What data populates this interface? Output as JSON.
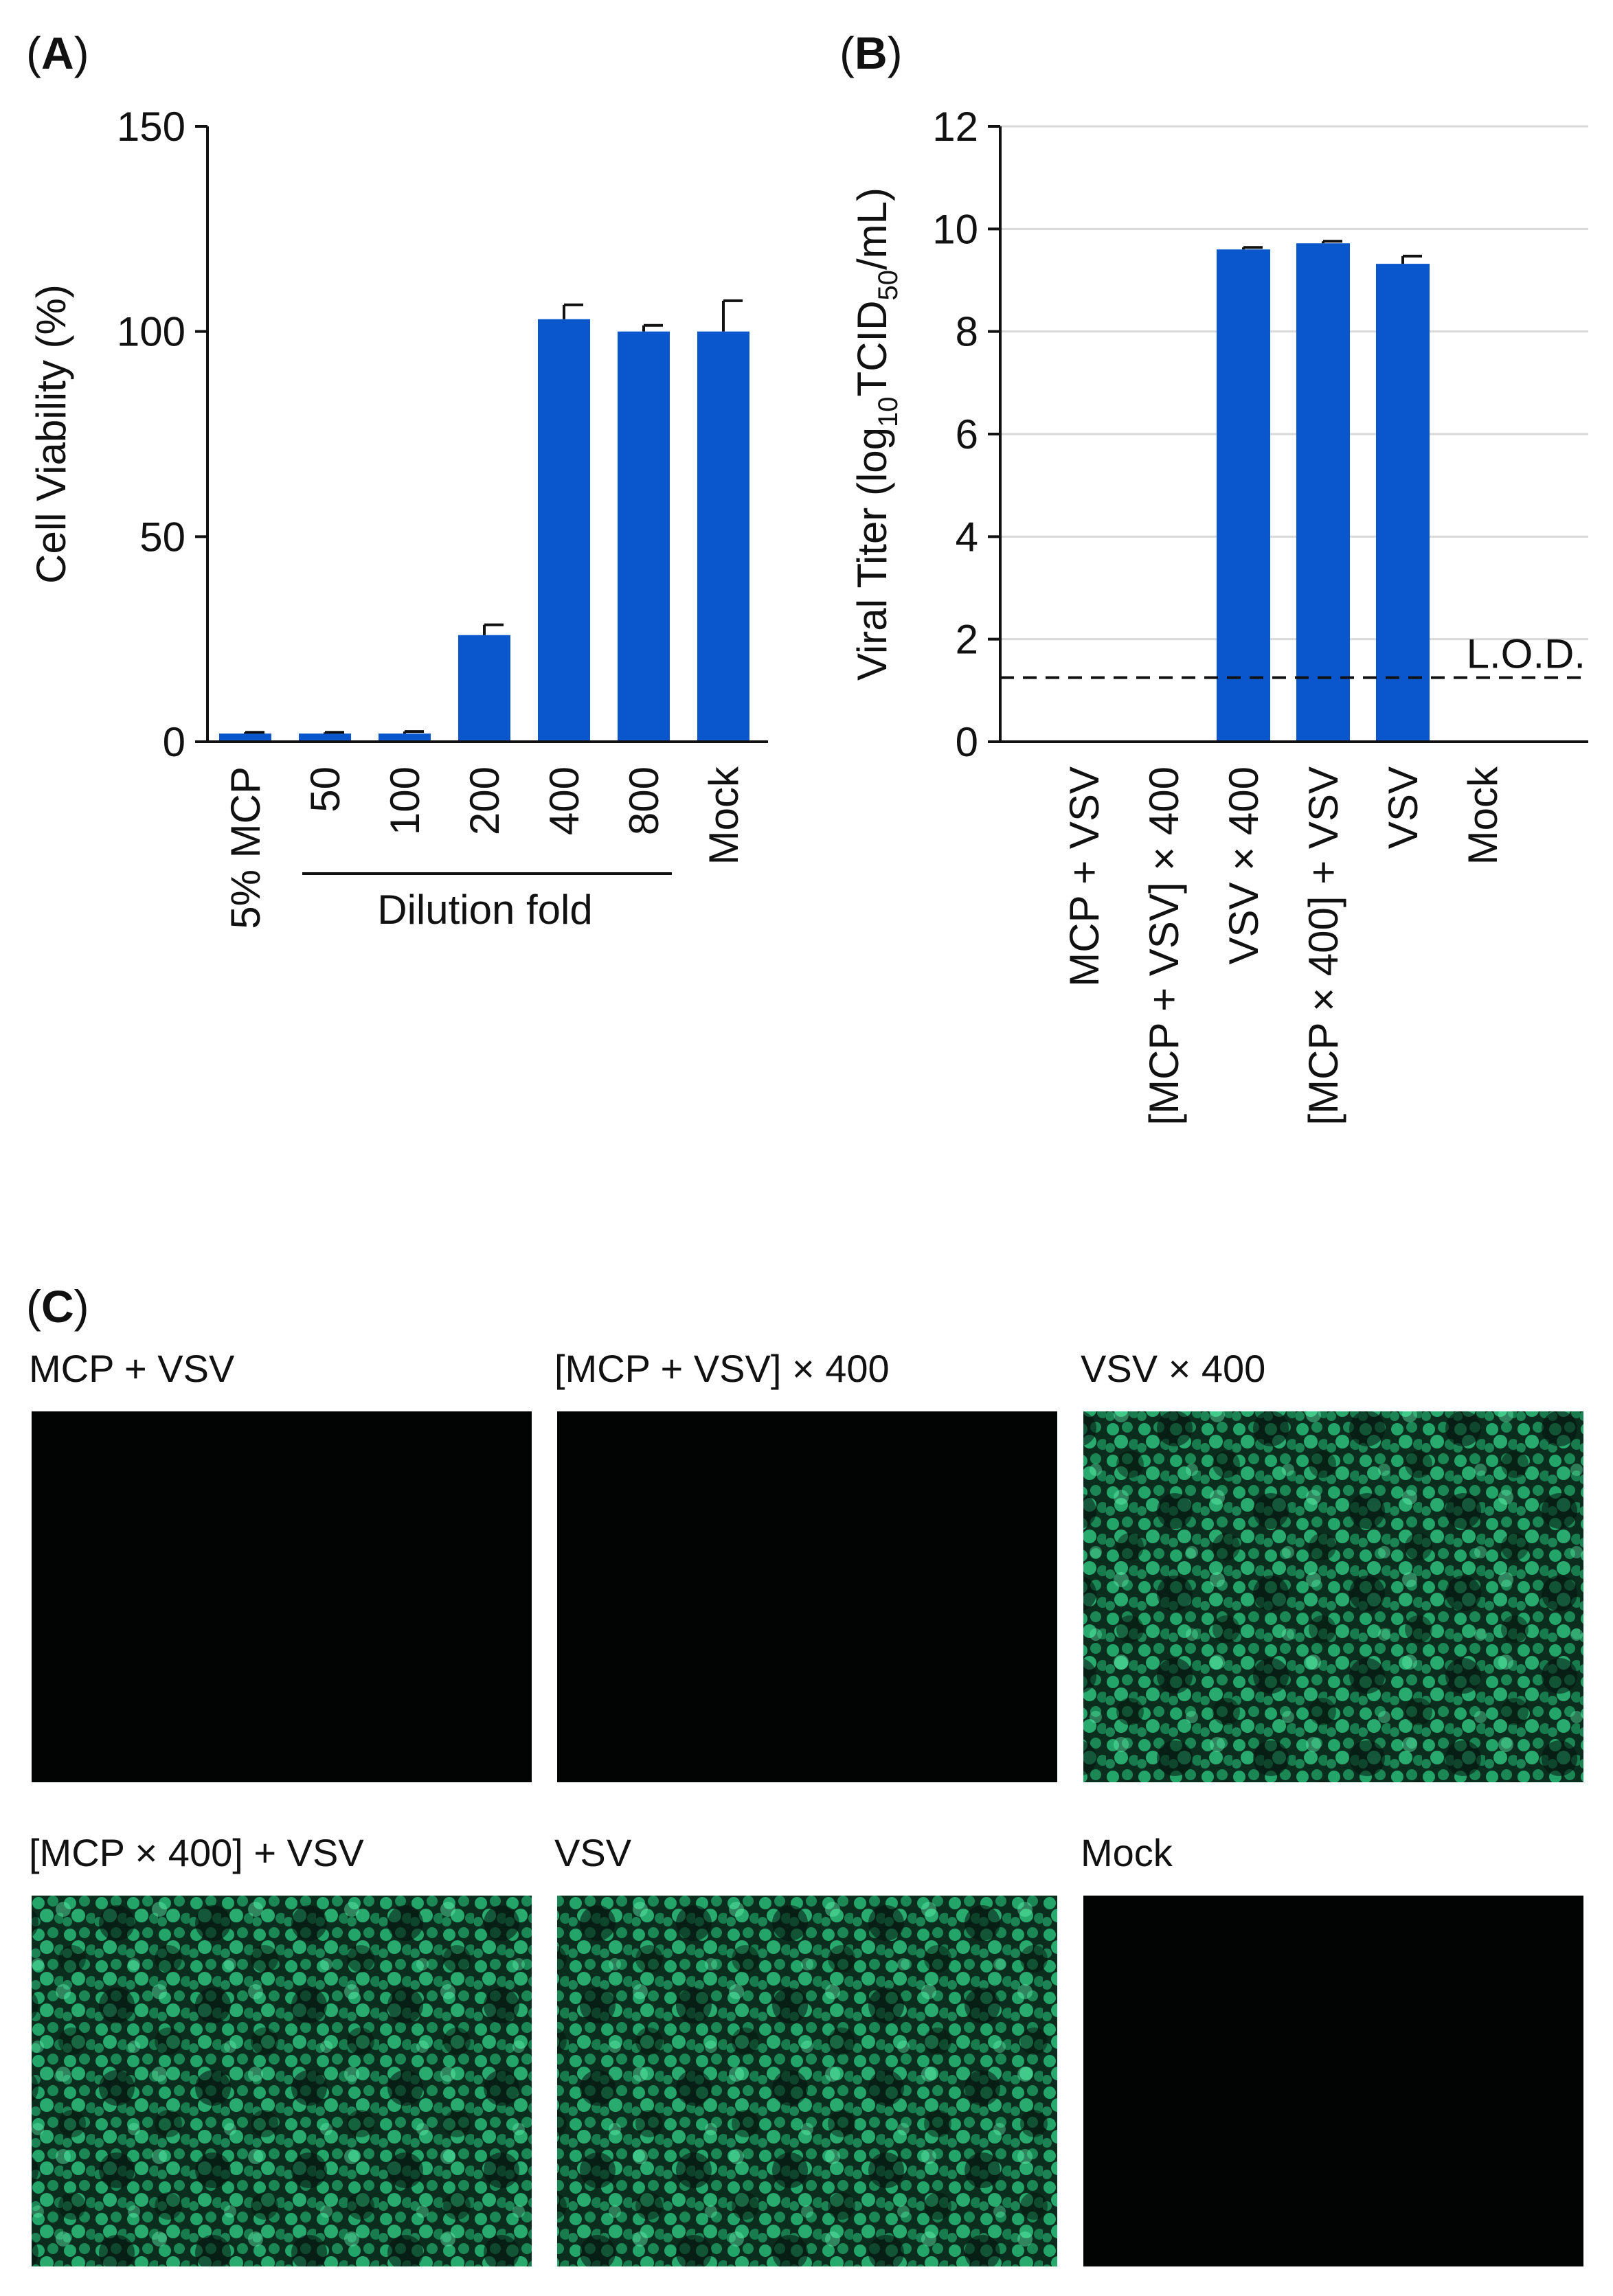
{
  "colors": {
    "bar": "#0a56cc",
    "axis": "#111111",
    "grid": "#d9d9d9",
    "micrograph_dark": "#020404",
    "micrograph_bg": "#0a2a1c",
    "micrograph_cell": "#2ecf86"
  },
  "chart_data": [
    {
      "panel": "(A)",
      "type": "bar",
      "ylabel": "Cell Viability (%)",
      "xlabel": "Dilution fold",
      "ylim": [
        0,
        150
      ],
      "yticks": [
        0,
        50,
        100,
        150
      ],
      "grid": false,
      "categories": [
        "5% MCP",
        "50",
        "100",
        "200",
        "400",
        "800",
        "Mock"
      ],
      "values": [
        2,
        2,
        2,
        26,
        103,
        100,
        100
      ],
      "errors": [
        0.3,
        0.3,
        0.5,
        2.5,
        3.5,
        1.5,
        7.5
      ]
    },
    {
      "panel": "(B)",
      "type": "bar",
      "ylabel": "Viral Titer (log10TCID50/mL)",
      "ylabel_parts": [
        "Viral Titer (log",
        "10",
        "TCID",
        "50",
        "/mL)"
      ],
      "ylim": [
        0,
        12
      ],
      "yticks": [
        0,
        2,
        4,
        6,
        8,
        10,
        12
      ],
      "grid": true,
      "categories": [
        "MCP + VSV",
        "[MCP + VSV] × 400",
        "VSV × 400",
        "[MCP × 400] + VSV",
        "VSV",
        "Mock"
      ],
      "values": [
        0,
        0,
        9.6,
        9.72,
        9.32,
        0
      ],
      "errors": [
        0,
        0,
        0.04,
        0.04,
        0.15,
        0
      ],
      "reference_line": {
        "label": "L.O.D.",
        "value": 1.25,
        "style": "dashed"
      }
    }
  ],
  "micrographs": {
    "panel": "(C)",
    "items": [
      {
        "caption": "MCP + VSV",
        "fluorescence": "none"
      },
      {
        "caption": "[MCP + VSV] × 400",
        "fluorescence": "none"
      },
      {
        "caption": "VSV × 400",
        "fluorescence": "strong"
      },
      {
        "caption": "[MCP × 400] + VSV",
        "fluorescence": "strong"
      },
      {
        "caption": "VSV",
        "fluorescence": "strong"
      },
      {
        "caption": "Mock",
        "fluorescence": "none"
      }
    ]
  }
}
